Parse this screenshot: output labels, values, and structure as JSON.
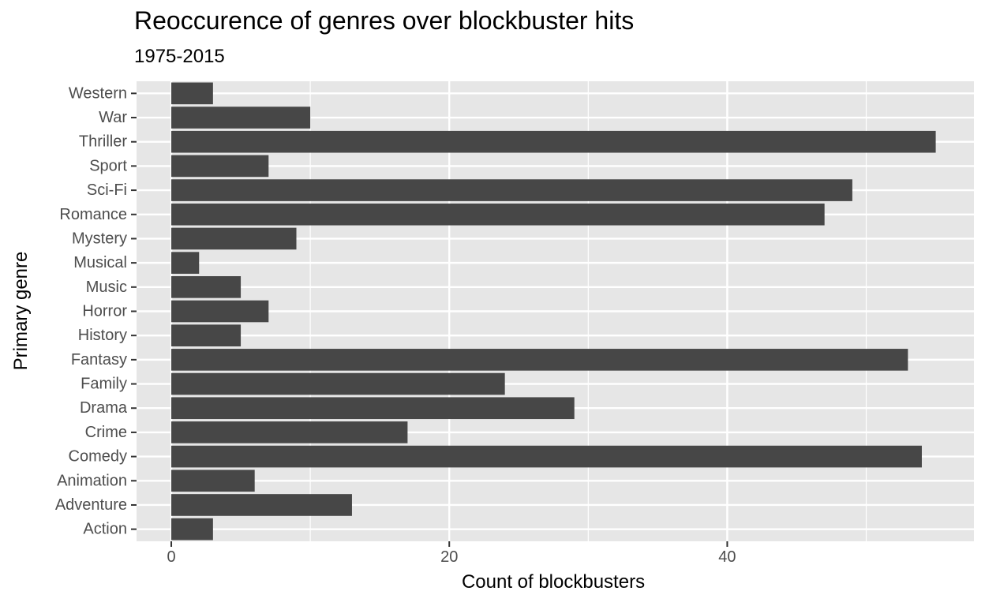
{
  "chart_data": {
    "type": "bar",
    "orientation": "horizontal",
    "title": "Reoccurence of genres over blockbuster hits",
    "subtitle": "1975-2015",
    "xlabel": "Count of blockbusters",
    "ylabel": "Primary genre",
    "categories": [
      "Action",
      "Adventure",
      "Animation",
      "Comedy",
      "Crime",
      "Drama",
      "Family",
      "Fantasy",
      "History",
      "Horror",
      "Music",
      "Musical",
      "Mystery",
      "Romance",
      "Sci-Fi",
      "Sport",
      "Thriller",
      "War",
      "Western"
    ],
    "values": [
      3,
      13,
      6,
      54,
      17,
      29,
      24,
      53,
      5,
      7,
      5,
      2,
      9,
      47,
      49,
      7,
      55,
      10,
      3
    ],
    "xlim": [
      -2.5,
      57.75
    ],
    "x_ticks": [
      0,
      20,
      40
    ],
    "x_tick_labels": [
      "0",
      "20",
      "40"
    ],
    "x_minor_gridlines": [
      10,
      30,
      50
    ],
    "grid": true,
    "legend": "none",
    "colors": {
      "bar": "#474747",
      "panel_background": "#E6E6E6",
      "gridline": "#FFFFFF",
      "axis_text": "#4D4D4D",
      "tick": "#333333"
    }
  }
}
